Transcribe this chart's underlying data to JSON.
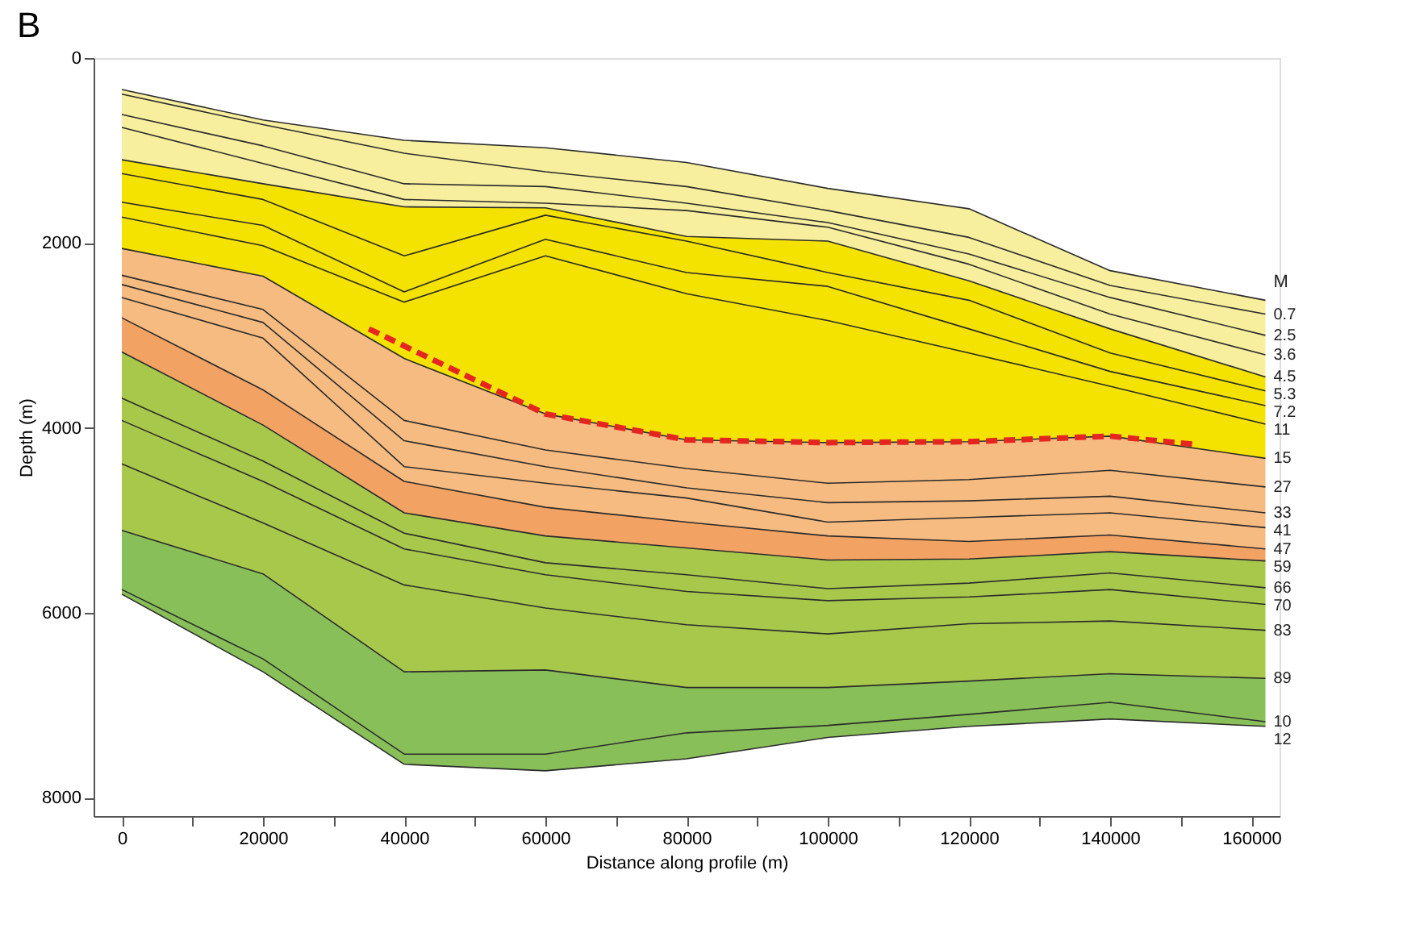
{
  "chart_data": {
    "type": "area",
    "title": "B",
    "xlabel": "Distance along profile (m)",
    "ylabel": "Depth (m)",
    "x": [
      0,
      20000,
      40000,
      60000,
      80000,
      100000,
      120000,
      140000,
      162000
    ],
    "xlim": [
      -4000,
      164000
    ],
    "xticks": [
      0,
      {
        "value": 10000,
        "label": null
      },
      20000,
      {
        "value": 30000,
        "label": null
      },
      40000,
      {
        "value": 50000,
        "label": null
      },
      60000,
      {
        "value": 70000,
        "label": null
      },
      80000,
      {
        "value": 90000,
        "label": null
      },
      100000,
      {
        "value": 110000,
        "label": null
      },
      120000,
      {
        "value": 130000,
        "label": null
      },
      140000,
      {
        "value": 150000,
        "label": null
      },
      160000
    ],
    "ylim": [
      8200,
      0
    ],
    "yticks": [
      0,
      2000,
      4000,
      6000,
      8000
    ],
    "grid": false,
    "legend": false,
    "annotations": [
      "M"
    ],
    "series": [
      {
        "type": "line",
        "color": "#2b2b2b",
        "values": [
          340,
          670,
          890,
          970,
          1130,
          1410,
          1630,
          2300,
          2620
        ]
      },
      {
        "type": "line",
        "name": "0.7",
        "color": "#2b2b2b",
        "values": [
          390,
          720,
          1030,
          1230,
          1390,
          1650,
          1940,
          2460,
          2770
        ]
      },
      {
        "type": "line",
        "name": "2.5",
        "color": "#2b2b2b",
        "values": [
          610,
          950,
          1360,
          1390,
          1570,
          1780,
          2120,
          2590,
          3000
        ]
      },
      {
        "type": "line",
        "name": "3.6",
        "color": "#2b2b2b",
        "values": [
          750,
          1140,
          1530,
          1570,
          1650,
          1830,
          2230,
          2770,
          3210
        ]
      },
      {
        "name": "4.5",
        "color": "#f7ee9e",
        "values": [
          1100,
          1360,
          1610,
          1620,
          1930,
          1980,
          2410,
          2930,
          3450
        ]
      },
      {
        "type": "line",
        "name": "5.3",
        "color": "#2b2b2b",
        "values": [
          1250,
          1530,
          2140,
          1700,
          1980,
          2320,
          2620,
          3190,
          3600
        ]
      },
      {
        "type": "line",
        "name": "7.2",
        "color": "#2b2b2b",
        "values": [
          1560,
          1810,
          2530,
          1960,
          2320,
          2470,
          2930,
          3390,
          3760
        ]
      },
      {
        "type": "line",
        "name": "11",
        "color": "#2b2b2b",
        "values": [
          1720,
          2030,
          2640,
          2140,
          2550,
          2840,
          3190,
          3550,
          3960
        ]
      },
      {
        "name": "15",
        "color": "#f4e300",
        "values": [
          2060,
          2360,
          3250,
          3850,
          4130,
          4160,
          4150,
          4090,
          4330
        ]
      },
      {
        "type": "line",
        "name": "27",
        "color": "#2b2b2b",
        "values": [
          2350,
          2720,
          3920,
          4240,
          4440,
          4600,
          4560,
          4460,
          4640
        ]
      },
      {
        "type": "line",
        "name": "33",
        "color": "#2b2b2b",
        "values": [
          2450,
          2860,
          4140,
          4420,
          4650,
          4810,
          4790,
          4740,
          4920
        ]
      },
      {
        "type": "line",
        "name": "41",
        "color": "#2b2b2b",
        "values": [
          2590,
          3030,
          4420,
          4600,
          4760,
          5020,
          4970,
          4920,
          5080
        ]
      },
      {
        "name": "47",
        "color": "#f6bb80",
        "values": [
          2810,
          3590,
          4580,
          4860,
          5020,
          5170,
          5230,
          5160,
          5310
        ]
      },
      {
        "name": "59",
        "color": "#f2a263",
        "values": [
          3180,
          3970,
          4920,
          5170,
          5300,
          5430,
          5420,
          5340,
          5440
        ]
      },
      {
        "type": "line",
        "name": "66",
        "color": "#2b2b2b",
        "values": [
          3680,
          4360,
          5140,
          5460,
          5590,
          5740,
          5680,
          5570,
          5730
        ]
      },
      {
        "type": "line",
        "name": "70",
        "color": "#2b2b2b",
        "values": [
          3920,
          4580,
          5310,
          5590,
          5770,
          5870,
          5830,
          5750,
          5910
        ]
      },
      {
        "type": "line",
        "name": "83",
        "color": "#2b2b2b",
        "values": [
          4390,
          5030,
          5700,
          5950,
          6130,
          6230,
          6120,
          6090,
          6190
        ]
      },
      {
        "name": "89",
        "color": "#a8c84c",
        "values": [
          5110,
          5580,
          6640,
          6620,
          6810,
          6810,
          6740,
          6660,
          6710
        ]
      },
      {
        "type": "line",
        "name": "10",
        "color": "#2b2b2b",
        "values": [
          5750,
          6500,
          7530,
          7530,
          7300,
          7220,
          7100,
          6970,
          7180
        ]
      },
      {
        "name": "12",
        "color": "#88bf58",
        "values": [
          5800,
          6640,
          7640,
          7710,
          7580,
          7350,
          7230,
          7150,
          7230
        ]
      },
      {
        "type": "line",
        "line_style": "dashed",
        "color": "#e52620",
        "x": [
          35000,
          60000,
          80000,
          100000,
          120000,
          140000,
          152000
        ],
        "values": [
          2930,
          3850,
          4130,
          4160,
          4150,
          4090,
          4180
        ]
      }
    ]
  }
}
